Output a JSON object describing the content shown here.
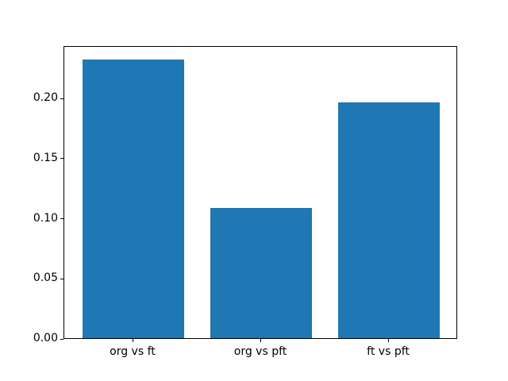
{
  "chart_data": {
    "type": "bar",
    "title": "",
    "xlabel": "",
    "ylabel": "",
    "categories": [
      "org vs ft",
      "org vs pft",
      "ft vs pft"
    ],
    "values": [
      0.232,
      0.108,
      0.196
    ],
    "ylim": [
      0,
      0.2436
    ],
    "yticks": [
      0.0,
      0.05,
      0.1,
      0.15,
      0.2
    ],
    "ytick_labels": [
      "0.00",
      "0.05",
      "0.10",
      "0.15",
      "0.20"
    ],
    "grid": false,
    "legend": "none",
    "bar_color": "#1f77b4",
    "spine_color": "#000000",
    "background_color": "#ffffff"
  }
}
